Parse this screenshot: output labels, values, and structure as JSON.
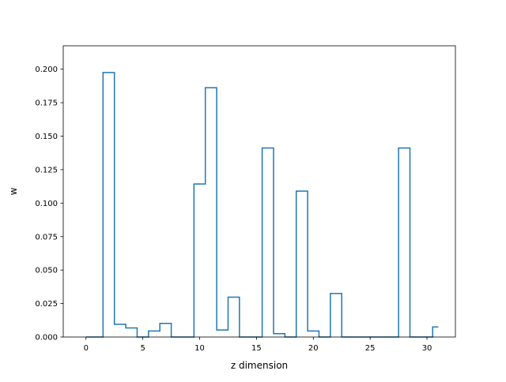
{
  "chart_data": {
    "type": "line",
    "style": "step-mid",
    "title": "",
    "xlabel": "z dimension",
    "ylabel": "w",
    "xlim": [
      -2.0,
      32.5
    ],
    "ylim": [
      0,
      0.2175
    ],
    "xticks": [
      0,
      5,
      10,
      15,
      20,
      25,
      30
    ],
    "yticks": [
      0.0,
      0.025,
      0.05,
      0.075,
      0.1,
      0.125,
      0.15,
      0.175,
      0.2
    ],
    "ytick_labels": [
      "0.000",
      "0.025",
      "0.050",
      "0.075",
      "0.100",
      "0.125",
      "0.150",
      "0.175",
      "0.200"
    ],
    "grid": false,
    "series": [
      {
        "color": "#1f77b4",
        "x": [
          0,
          1,
          2,
          3,
          4,
          5,
          6,
          7,
          8,
          9,
          10,
          11,
          12,
          13,
          14,
          15,
          16,
          17,
          18,
          19,
          20,
          21,
          22,
          23,
          24,
          25,
          26,
          27,
          28,
          29,
          30,
          31
        ],
        "values": [
          0,
          0,
          0.1975,
          0.0095,
          0.0068,
          0,
          0.0045,
          0.0102,
          0,
          0,
          0.1143,
          0.1862,
          0.0052,
          0.0298,
          0,
          0,
          0.1412,
          0.0025,
          0,
          0.109,
          0.0045,
          0,
          0.0325,
          0,
          0,
          0,
          0,
          0,
          0.1412,
          0,
          0,
          0.0075
        ]
      }
    ]
  }
}
